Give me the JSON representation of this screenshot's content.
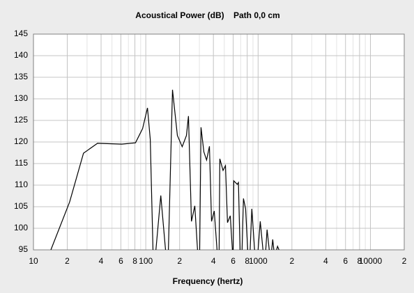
{
  "chart_data": {
    "type": "line",
    "title": "Acoustical Power (dB)    Path 0,0 cm",
    "x_label": "Frequency (hertz)",
    "xscale": "log",
    "xlim": [
      10,
      20000
    ],
    "ylim": [
      95,
      145
    ],
    "yticks": [
      95,
      100,
      105,
      110,
      115,
      120,
      125,
      130,
      135,
      140,
      145
    ],
    "xticks": [
      {
        "value": 10,
        "label": "10"
      },
      {
        "value": 20,
        "label": "2"
      },
      {
        "value": 40,
        "label": "4"
      },
      {
        "value": 60,
        "label": "6"
      },
      {
        "value": 80,
        "label": "8"
      },
      {
        "value": 100,
        "label": "100"
      },
      {
        "value": 200,
        "label": "2"
      },
      {
        "value": 400,
        "label": "4"
      },
      {
        "value": 600,
        "label": "6"
      },
      {
        "value": 800,
        "label": "8"
      },
      {
        "value": 1000,
        "label": "1000"
      },
      {
        "value": 2000,
        "label": "2"
      },
      {
        "value": 4000,
        "label": "4"
      },
      {
        "value": 6000,
        "label": "6"
      },
      {
        "value": 8000,
        "label": "8"
      },
      {
        "value": 10000,
        "label": "10000"
      },
      {
        "value": 20000,
        "label": "2"
      }
    ],
    "minor_xticks": [
      30,
      50,
      70,
      90,
      300,
      500,
      700,
      900,
      3000,
      5000,
      7000,
      9000
    ],
    "grid": true,
    "color": "#000000",
    "x": [
      14.3,
      21,
      27.9,
      37.2,
      61,
      81,
      93.7,
      103.5,
      109.6,
      116,
      null,
      123,
      136,
      150,
      null,
      159,
      173,
      191,
      211,
      230,
      240,
      255,
      273,
      289,
      null,
      302,
      310,
      329,
      348,
      369,
      385,
      407,
      431,
      null,
      450,
      456,
      487,
      512,
      534,
      565,
      590,
      null,
      600,
      607,
      652,
      668,
      690,
      null,
      720,
      741,
      774,
      808,
      null,
      850,
      879,
      931,
      null,
      1000,
      1045,
      1105,
      null,
      1170,
      1202,
      1256,
      null,
      1320,
      1350,
      1380,
      null,
      1460,
      1489,
      1535
    ],
    "values": [
      95,
      106.1,
      117.4,
      119.7,
      119.5,
      119.8,
      123.1,
      127.9,
      120.6,
      95,
      null,
      95,
      107.6,
      95,
      null,
      95,
      132.1,
      121.5,
      118.9,
      121.5,
      126,
      101.6,
      105.2,
      95,
      null,
      95,
      123.4,
      117.7,
      115.8,
      119,
      101.6,
      104,
      95,
      null,
      95,
      116.1,
      113.4,
      114.5,
      101.3,
      102.9,
      95,
      null,
      95,
      111,
      110.2,
      110.6,
      95,
      null,
      95,
      106.9,
      104.5,
      95,
      null,
      95,
      104.5,
      95,
      null,
      95,
      101.6,
      95,
      null,
      95,
      99.7,
      95,
      null,
      95,
      97.4,
      95,
      null,
      95,
      95.8,
      95
    ]
  }
}
